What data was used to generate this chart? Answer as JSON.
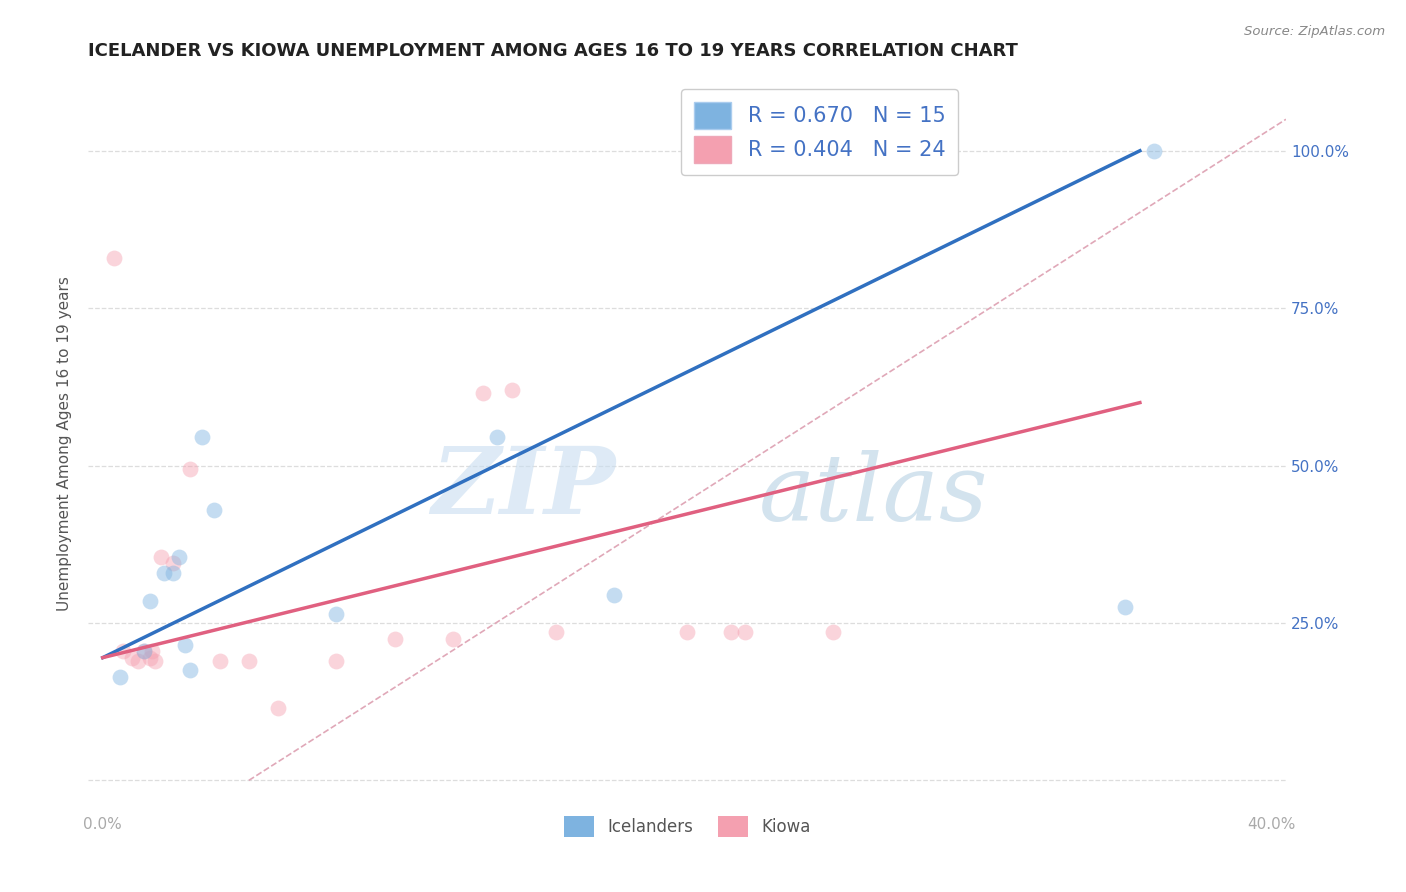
{
  "title": "ICELANDER VS KIOWA UNEMPLOYMENT AMONG AGES 16 TO 19 YEARS CORRELATION CHART",
  "source": "Source: ZipAtlas.com",
  "ylabel": "Unemployment Among Ages 16 to 19 years",
  "y_ticks": [
    0.0,
    0.25,
    0.5,
    0.75,
    1.0
  ],
  "y_tick_labels_right": [
    "",
    "25.0%",
    "50.0%",
    "75.0%",
    "100.0%"
  ],
  "xlim": [
    -0.005,
    0.405
  ],
  "ylim": [
    -0.05,
    1.12
  ],
  "icelander_color": "#7eb3e0",
  "kiowa_color": "#f4a0b0",
  "icelander_R": 0.67,
  "icelander_N": 15,
  "kiowa_R": 0.404,
  "kiowa_N": 24,
  "icelander_x": [
    0.006,
    0.014,
    0.016,
    0.021,
    0.024,
    0.026,
    0.028,
    0.03,
    0.034,
    0.038,
    0.08,
    0.135,
    0.175,
    0.35,
    0.36
  ],
  "icelander_y": [
    0.165,
    0.205,
    0.285,
    0.33,
    0.33,
    0.355,
    0.215,
    0.175,
    0.545,
    0.43,
    0.265,
    0.545,
    0.295,
    0.275,
    1.0
  ],
  "kiowa_x": [
    0.004,
    0.007,
    0.01,
    0.012,
    0.014,
    0.016,
    0.017,
    0.018,
    0.02,
    0.024,
    0.03,
    0.04,
    0.05,
    0.06,
    0.08,
    0.1,
    0.12,
    0.13,
    0.14,
    0.155,
    0.2,
    0.215,
    0.22,
    0.25
  ],
  "kiowa_y": [
    0.83,
    0.205,
    0.195,
    0.19,
    0.205,
    0.195,
    0.205,
    0.19,
    0.355,
    0.345,
    0.495,
    0.19,
    0.19,
    0.115,
    0.19,
    0.225,
    0.225,
    0.615,
    0.62,
    0.235,
    0.235,
    0.235,
    0.235,
    0.235
  ],
  "background_color": "#ffffff",
  "grid_color": "#dddddd",
  "watermark_zip_color": "#d8e8f5",
  "watermark_atlas_color": "#c8d8e8",
  "title_fontsize": 13,
  "axis_label_fontsize": 11,
  "tick_fontsize": 11,
  "marker_size": 130,
  "marker_alpha": 0.45,
  "regression_line_blue": "#3070c0",
  "regression_line_pink": "#e06080",
  "reference_line_color": "#e0a8b8",
  "blue_line_x0": 0.0,
  "blue_line_y0": 0.195,
  "blue_line_x1": 0.355,
  "blue_line_y1": 1.0,
  "pink_line_x0": 0.0,
  "pink_line_y0": 0.195,
  "pink_line_x1": 0.355,
  "pink_line_y1": 0.6,
  "ref_line_x0": 0.05,
  "ref_line_y0": 0.0,
  "ref_line_x1": 0.405,
  "ref_line_y1": 1.05
}
